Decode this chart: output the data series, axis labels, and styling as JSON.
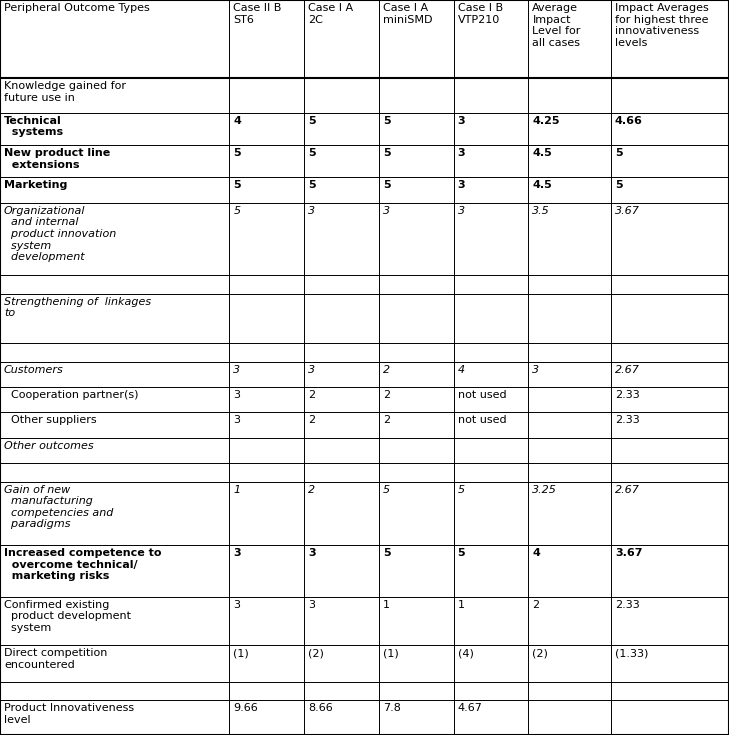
{
  "columns": [
    "Peripheral Outcome Types",
    "Case II B\nST6",
    "Case I A\n2C",
    "Case I A\nminiSMD",
    "Case I B\nVTP210",
    "Average\nImpact\nLevel for\nall cases",
    "Impact Averages\nfor highest three\ninnovativeness\nlevels"
  ],
  "rows": [
    {
      "label": "Knowledge gained for\nfuture use in",
      "style": "normal",
      "values": [
        "",
        "",
        "",
        "",
        "",
        ""
      ]
    },
    {
      "label": "Technical\n  systems",
      "style": "bold",
      "values": [
        "4",
        "5",
        "5",
        "3",
        "4.25",
        "4.66"
      ]
    },
    {
      "label": "New product line\n  extensions",
      "style": "bold",
      "values": [
        "5",
        "5",
        "5",
        "3",
        "4.5",
        "5"
      ]
    },
    {
      "label": "Marketing",
      "style": "bold",
      "values": [
        "5",
        "5",
        "5",
        "3",
        "4.5",
        "5"
      ]
    },
    {
      "label": "Organizational\n  and internal\n  product innovation\n  system\n  development",
      "style": "italic",
      "values": [
        "5",
        "3",
        "3",
        "3",
        "3.5",
        "3.67"
      ]
    },
    {
      "label": "",
      "style": "normal",
      "values": [
        "",
        "",
        "",
        "",
        "",
        ""
      ]
    },
    {
      "label": "Strengthening of  linkages\nto",
      "style": "italic",
      "values": [
        "",
        "",
        "",
        "",
        "",
        ""
      ]
    },
    {
      "label": "",
      "style": "normal",
      "values": [
        "",
        "",
        "",
        "",
        "",
        ""
      ]
    },
    {
      "label": "Customers",
      "style": "italic",
      "values": [
        "3",
        "3",
        "2",
        "4",
        "3",
        "2.67"
      ]
    },
    {
      "label": "  Cooperation partner(s)",
      "style": "normal",
      "values": [
        "3",
        "2",
        "2",
        "not used",
        "",
        "2.33"
      ]
    },
    {
      "label": "  Other suppliers",
      "style": "normal",
      "values": [
        "3",
        "2",
        "2",
        "not used",
        "",
        "2.33"
      ]
    },
    {
      "label": "Other outcomes",
      "style": "italic",
      "values": [
        "",
        "",
        "",
        "",
        "",
        ""
      ]
    },
    {
      "label": "",
      "style": "normal",
      "values": [
        "",
        "",
        "",
        "",
        "",
        ""
      ]
    },
    {
      "label": "Gain of new\n  manufacturing\n  competencies and\n  paradigms",
      "style": "italic",
      "values": [
        "1",
        "2",
        "5",
        "5",
        "3.25",
        "2.67"
      ]
    },
    {
      "label": "Increased competence to\n  overcome technical/\n  marketing risks",
      "style": "bold",
      "values": [
        "3",
        "3",
        "5",
        "5",
        "4",
        "3.67"
      ]
    },
    {
      "label": "Confirmed existing\n  product development\n  system",
      "style": "normal",
      "values": [
        "3",
        "3",
        "1",
        "1",
        "2",
        "2.33"
      ]
    },
    {
      "label": "Direct competition\nencountered",
      "style": "normal",
      "values": [
        "(1)",
        "(2)",
        "(1)",
        "(4)",
        "(2)",
        "(1.33)"
      ]
    },
    {
      "label": "",
      "style": "normal",
      "values": [
        "",
        "",
        "",
        "",
        "",
        ""
      ]
    },
    {
      "label": "Product Innovativeness\nlevel",
      "style": "normal",
      "values": [
        "9.66",
        "8.66",
        "7.8",
        "4.67",
        "",
        ""
      ]
    }
  ],
  "col_widths_pts": [
    175,
    57,
    57,
    57,
    57,
    63,
    90
  ],
  "row_heights_pts": [
    68,
    30,
    28,
    28,
    22,
    63,
    16,
    43,
    16,
    22,
    22,
    22,
    22,
    16,
    55,
    45,
    42,
    32,
    16,
    30
  ],
  "bg_color": "#ffffff",
  "border_color": "#000000",
  "text_color": "#000000",
  "fontsize": 8.0
}
